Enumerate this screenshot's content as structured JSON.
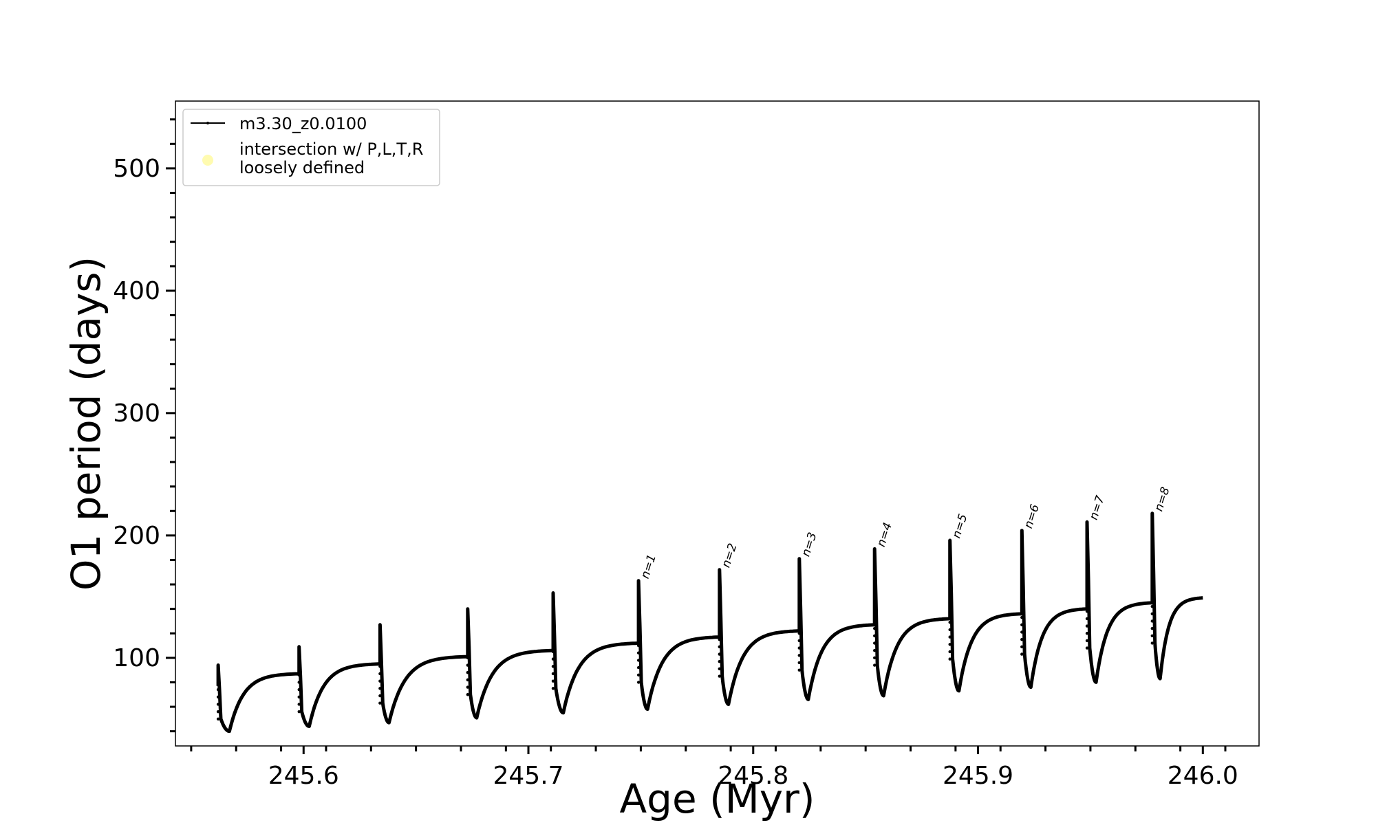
{
  "chart_data": {
    "type": "line",
    "xlabel": "Age (Myr)",
    "ylabel": "O1 period (days)",
    "xlim": [
      245.543,
      246.025
    ],
    "ylim": [
      28,
      555
    ],
    "xticks": [
      245.6,
      245.7,
      245.8,
      245.9,
      246.0
    ],
    "xtick_labels": [
      "245.6",
      "245.7",
      "245.8",
      "245.9",
      "246.0"
    ],
    "yticks": [
      100,
      200,
      300,
      400,
      500
    ],
    "ytick_labels": [
      "100",
      "200",
      "300",
      "400",
      "500"
    ],
    "grid": false,
    "legend_position": "top-left",
    "legend": [
      {
        "label": "m3.30_z0.0100",
        "marker": "line-with-dots",
        "color": "#000000"
      },
      {
        "label_lines": [
          "intersection w/ P,L,T,R",
          "loosely defined"
        ],
        "marker": "circle",
        "color": "#fffbb0"
      }
    ],
    "series": [
      {
        "name": "m3.30_z0.0100",
        "color": "#000000",
        "start": {
          "x": 245.562,
          "y": 77
        },
        "end": {
          "x": 246.0,
          "y": 149
        },
        "cycles": [
          {
            "pulse_x": 245.562,
            "peak_y": 94,
            "low_y": 50,
            "min_x": 245.567,
            "min_y": 40,
            "plateau_y": 87
          },
          {
            "pulse_x": 245.598,
            "peak_y": 109,
            "low_y": 56,
            "min_x": 245.6025,
            "min_y": 44,
            "plateau_y": 95
          },
          {
            "pulse_x": 245.634,
            "peak_y": 127,
            "low_y": 63,
            "min_x": 245.638,
            "min_y": 47,
            "plateau_y": 101
          },
          {
            "pulse_x": 245.673,
            "peak_y": 140,
            "low_y": 70,
            "min_x": 245.677,
            "min_y": 51,
            "plateau_y": 106
          },
          {
            "pulse_x": 245.711,
            "peak_y": 153,
            "low_y": 75,
            "min_x": 245.7155,
            "min_y": 55,
            "plateau_y": 112
          },
          {
            "pulse_x": 245.749,
            "peak_y": 163,
            "low_y": 80,
            "min_x": 245.753,
            "min_y": 58,
            "plateau_y": 117
          },
          {
            "pulse_x": 245.785,
            "peak_y": 172,
            "low_y": 85,
            "min_x": 245.789,
            "min_y": 62,
            "plateau_y": 122
          },
          {
            "pulse_x": 245.8205,
            "peak_y": 181,
            "low_y": 90,
            "min_x": 245.8245,
            "min_y": 66,
            "plateau_y": 127
          },
          {
            "pulse_x": 245.854,
            "peak_y": 189,
            "low_y": 94,
            "min_x": 245.858,
            "min_y": 69,
            "plateau_y": 132
          },
          {
            "pulse_x": 245.8875,
            "peak_y": 196,
            "low_y": 99,
            "min_x": 245.8915,
            "min_y": 73,
            "plateau_y": 136
          },
          {
            "pulse_x": 245.9195,
            "peak_y": 204,
            "low_y": 103,
            "min_x": 245.9235,
            "min_y": 76,
            "plateau_y": 140
          },
          {
            "pulse_x": 245.9485,
            "peak_y": 211,
            "low_y": 108,
            "min_x": 245.9525,
            "min_y": 80,
            "plateau_y": 145
          },
          {
            "pulse_x": 245.9775,
            "peak_y": 218,
            "low_y": 112,
            "min_x": 245.981,
            "min_y": 83,
            "plateau_y": null
          }
        ]
      }
    ],
    "annotations": [
      {
        "text": "n=1",
        "x": 245.749,
        "y": 163
      },
      {
        "text": "n=2",
        "x": 245.785,
        "y": 172
      },
      {
        "text": "n=3",
        "x": 245.8205,
        "y": 181
      },
      {
        "text": "n=4",
        "x": 245.854,
        "y": 189
      },
      {
        "text": "n=5",
        "x": 245.8875,
        "y": 196
      },
      {
        "text": "n=6",
        "x": 245.9195,
        "y": 204
      },
      {
        "text": "n=7",
        "x": 245.9485,
        "y": 211
      },
      {
        "text": "n=8",
        "x": 245.9775,
        "y": 218
      }
    ]
  }
}
